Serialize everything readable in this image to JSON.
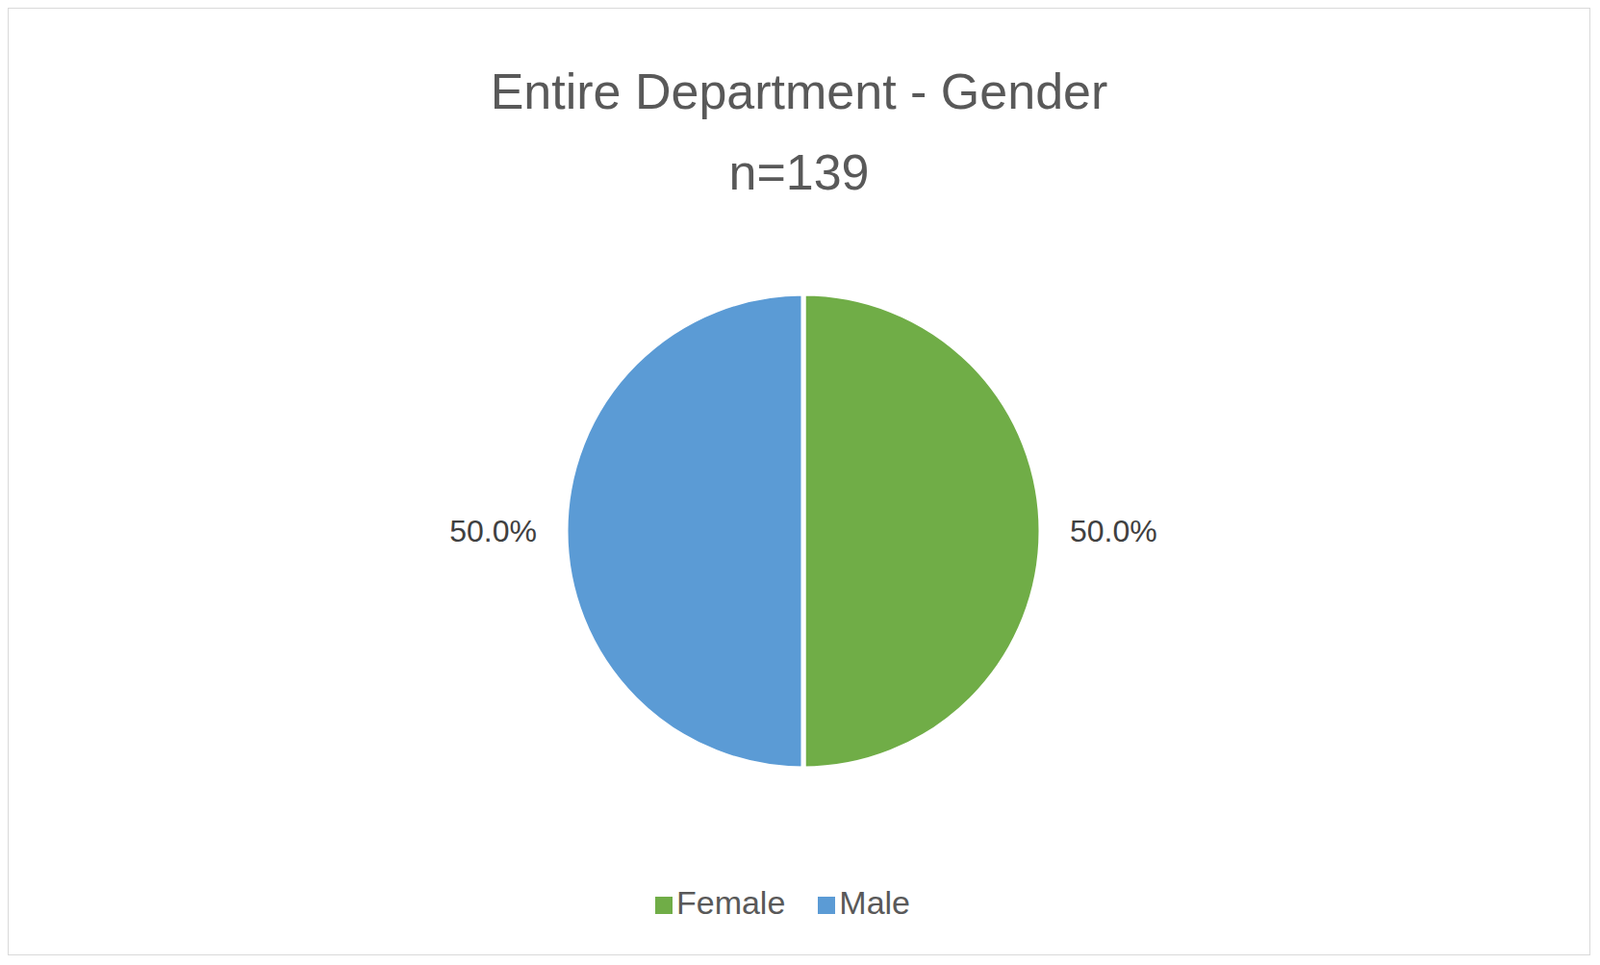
{
  "chart_data": {
    "type": "pie",
    "title": "Entire Department - Gender",
    "subtitle": "n=139",
    "categories": [
      "Female",
      "Male"
    ],
    "values": [
      50,
      50
    ],
    "value_labels": [
      "50.0%",
      "50.0%"
    ],
    "colors": [
      "#70ad47",
      "#5b9bd5"
    ],
    "data_labels": true,
    "legend": "bottom"
  }
}
